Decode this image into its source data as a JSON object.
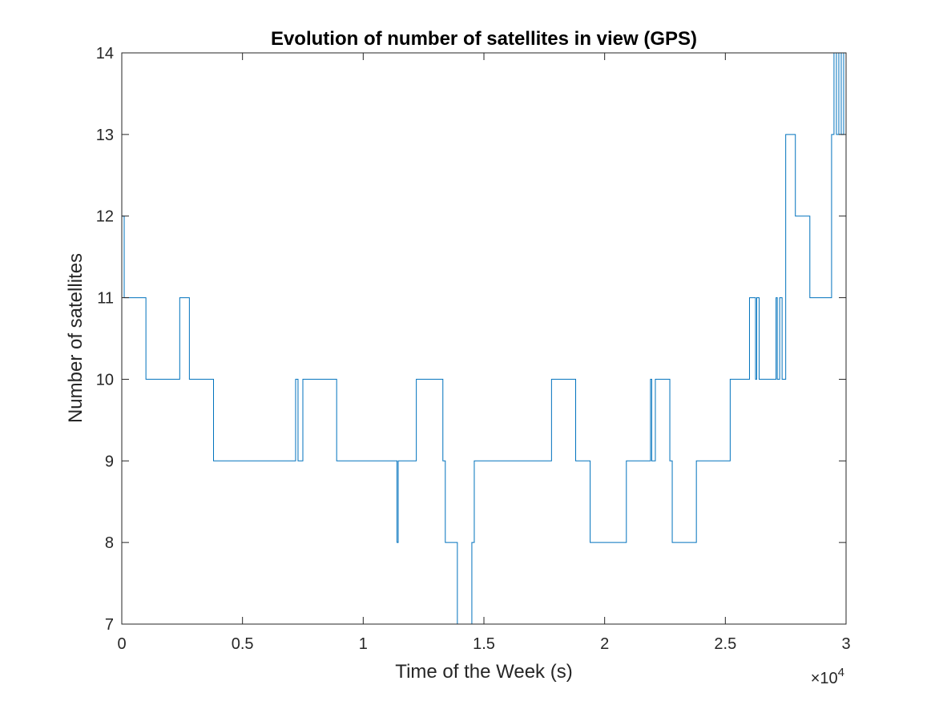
{
  "chart_data": {
    "type": "line",
    "title": "Evolution of number of satellites in view (GPS)",
    "xlabel": "Time of the Week (s)",
    "ylabel": "Number of satellites",
    "xlim": [
      0,
      30000
    ],
    "ylim": [
      7,
      14
    ],
    "x_exponent_label": "×10",
    "x_exponent_power": "4",
    "x_ticks": [
      0,
      5000,
      10000,
      15000,
      20000,
      25000,
      30000
    ],
    "x_tick_labels": [
      "0",
      "0.5",
      "1",
      "1.5",
      "2",
      "2.5",
      "3"
    ],
    "y_ticks": [
      7,
      8,
      9,
      10,
      11,
      12,
      13,
      14
    ],
    "y_tick_labels": [
      "7",
      "8",
      "9",
      "10",
      "11",
      "12",
      "13",
      "14"
    ],
    "grid": false,
    "line_color": "#0072BD",
    "series": [
      {
        "step": true,
        "x": [
          0,
          100,
          1000,
          2400,
          2800,
          3800,
          7200,
          7300,
          7500,
          8900,
          11400,
          11450,
          11550,
          12200,
          13300,
          13400,
          13900,
          14500,
          14600,
          17800,
          18800,
          19400,
          20900,
          21900,
          21950,
          22100,
          22700,
          22800,
          23800,
          25200,
          26000,
          26250,
          26300,
          26400,
          27100,
          27150,
          27250,
          27350,
          27500,
          27900,
          28500,
          29400,
          29500,
          29600,
          29700,
          29800,
          29900,
          30000
        ],
        "y": [
          12,
          11,
          10,
          11,
          10,
          9,
          10,
          9,
          10,
          9,
          8,
          9,
          9,
          10,
          9,
          8,
          7,
          8,
          9,
          10,
          9,
          8,
          9,
          10,
          9,
          10,
          9,
          8,
          9,
          10,
          11,
          10,
          11,
          10,
          11,
          10,
          11,
          10,
          13,
          12,
          11,
          13,
          14,
          13,
          14,
          13,
          14,
          14
        ]
      }
    ]
  }
}
